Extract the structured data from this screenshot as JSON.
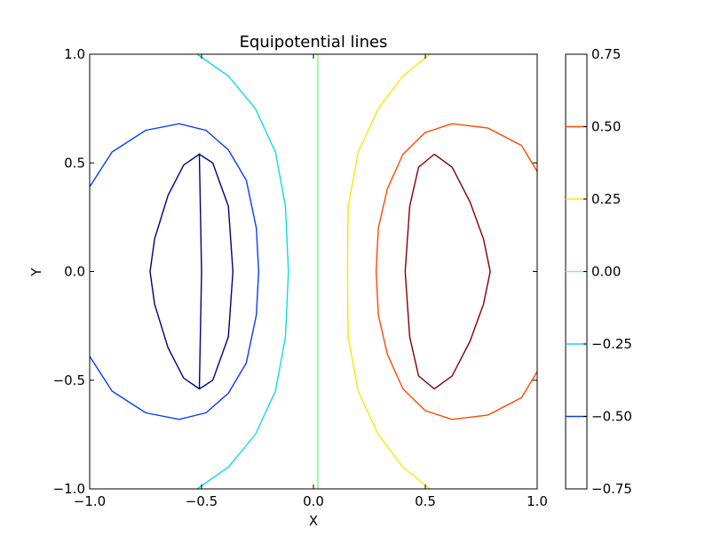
{
  "chart_data": {
    "type": "contour",
    "title": "Equipotential lines",
    "xlabel": "X",
    "ylabel": "Y",
    "xlim": [
      -1.0,
      1.0
    ],
    "ylim": [
      -1.0,
      1.0
    ],
    "x_ticks": [
      "−1.0",
      "−0.5",
      "0.0",
      "0.5",
      "1.0"
    ],
    "x_tick_values": [
      -1.0,
      -0.5,
      0.0,
      0.5,
      1.0
    ],
    "y_ticks": [
      "−1.0",
      "−0.5",
      "0.0",
      "0.5",
      "1.0"
    ],
    "y_tick_values": [
      -1.0,
      -0.5,
      0.0,
      0.5,
      1.0
    ],
    "grid": false,
    "colorbar": {
      "ticks": [
        "0.75",
        "0.50",
        "0.25",
        "0.00",
        "−0.25",
        "−0.50",
        "−0.75"
      ],
      "tick_values": [
        0.75,
        0.5,
        0.25,
        0.0,
        -0.25,
        -0.5,
        -0.75
      ],
      "line_levels": [
        -0.5,
        -0.25,
        0.0,
        0.25,
        0.5
      ],
      "line_colors": [
        "#0a3cff",
        "#12d8ee",
        "#7cff79",
        "#ffe600",
        "#ff4a00"
      ]
    },
    "contours": [
      {
        "level": -0.75,
        "color": "#000080",
        "closed": true,
        "points": [
          [
            -0.51,
            -0.54
          ],
          [
            -0.5,
            0.0
          ],
          [
            -0.51,
            0.54
          ],
          [
            -0.58,
            0.49
          ],
          [
            -0.65,
            0.35
          ],
          [
            -0.71,
            0.15
          ],
          [
            -0.73,
            0.0
          ],
          [
            -0.71,
            -0.15
          ],
          [
            -0.65,
            -0.35
          ],
          [
            -0.58,
            -0.49
          ],
          [
            -0.51,
            -0.54
          ],
          [
            -0.45,
            -0.5
          ],
          [
            -0.38,
            -0.3
          ],
          [
            -0.36,
            0.0
          ],
          [
            -0.38,
            0.3
          ],
          [
            -0.45,
            0.5
          ],
          [
            -0.51,
            0.54
          ]
        ]
      },
      {
        "level": -0.5,
        "color": "#0a3cff",
        "closed": false,
        "points": [
          [
            -1.0,
            0.39
          ],
          [
            -0.9,
            0.55
          ],
          [
            -0.75,
            0.65
          ],
          [
            -0.6,
            0.68
          ],
          [
            -0.48,
            0.65
          ],
          [
            -0.38,
            0.56
          ],
          [
            -0.3,
            0.42
          ],
          [
            -0.255,
            0.2
          ],
          [
            -0.245,
            0.0
          ],
          [
            -0.255,
            -0.2
          ],
          [
            -0.3,
            -0.42
          ],
          [
            -0.38,
            -0.56
          ],
          [
            -0.48,
            -0.65
          ],
          [
            -0.6,
            -0.68
          ],
          [
            -0.75,
            -0.65
          ],
          [
            -0.9,
            -0.55
          ],
          [
            -1.0,
            -0.39
          ]
        ]
      },
      {
        "level": -0.25,
        "color": "#12d8ee",
        "closed": false,
        "points": [
          [
            -0.52,
            1.0
          ],
          [
            -0.38,
            0.9
          ],
          [
            -0.26,
            0.75
          ],
          [
            -0.17,
            0.55
          ],
          [
            -0.125,
            0.3
          ],
          [
            -0.112,
            0.0
          ],
          [
            -0.125,
            -0.3
          ],
          [
            -0.17,
            -0.55
          ],
          [
            -0.26,
            -0.75
          ],
          [
            -0.38,
            -0.9
          ],
          [
            -0.52,
            -1.0
          ]
        ]
      },
      {
        "level": 0.0,
        "color": "#7cff79",
        "closed": false,
        "points": [
          [
            0.02,
            1.0
          ],
          [
            0.02,
            -1.0
          ]
        ]
      },
      {
        "level": 0.25,
        "color": "#ffe600",
        "closed": false,
        "points": [
          [
            0.52,
            1.0
          ],
          [
            0.4,
            0.9
          ],
          [
            0.29,
            0.75
          ],
          [
            0.2,
            0.55
          ],
          [
            0.155,
            0.3
          ],
          [
            0.152,
            0.0
          ],
          [
            0.155,
            -0.3
          ],
          [
            0.2,
            -0.55
          ],
          [
            0.29,
            -0.75
          ],
          [
            0.4,
            -0.9
          ],
          [
            0.52,
            -1.0
          ]
        ]
      },
      {
        "level": 0.5,
        "color": "#ff4a00",
        "closed": false,
        "points": [
          [
            1.0,
            0.46
          ],
          [
            0.93,
            0.58
          ],
          [
            0.78,
            0.66
          ],
          [
            0.62,
            0.68
          ],
          [
            0.5,
            0.64
          ],
          [
            0.4,
            0.54
          ],
          [
            0.33,
            0.38
          ],
          [
            0.29,
            0.2
          ],
          [
            0.28,
            0.0
          ],
          [
            0.29,
            -0.2
          ],
          [
            0.33,
            -0.38
          ],
          [
            0.4,
            -0.54
          ],
          [
            0.5,
            -0.64
          ],
          [
            0.62,
            -0.68
          ],
          [
            0.78,
            -0.66
          ],
          [
            0.93,
            -0.58
          ],
          [
            1.0,
            -0.46
          ]
        ]
      },
      {
        "level": 0.75,
        "color": "#800000",
        "closed": true,
        "points": [
          [
            0.54,
            0.54
          ],
          [
            0.47,
            0.48
          ],
          [
            0.43,
            0.3
          ],
          [
            0.41,
            0.0
          ],
          [
            0.43,
            -0.3
          ],
          [
            0.47,
            -0.48
          ],
          [
            0.54,
            -0.54
          ],
          [
            0.62,
            -0.48
          ],
          [
            0.7,
            -0.32
          ],
          [
            0.76,
            -0.15
          ],
          [
            0.79,
            0.0
          ],
          [
            0.76,
            0.15
          ],
          [
            0.7,
            0.32
          ],
          [
            0.62,
            0.48
          ],
          [
            0.54,
            0.54
          ]
        ]
      }
    ]
  }
}
